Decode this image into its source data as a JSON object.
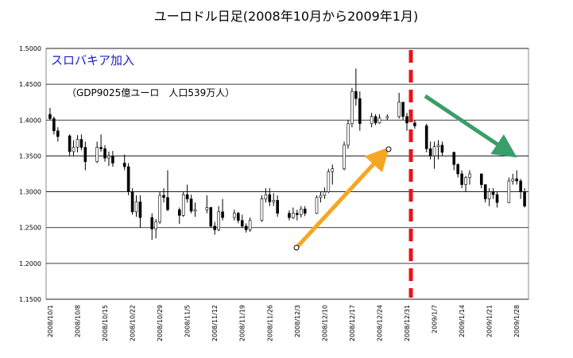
{
  "chart_data": {
    "type": "candlestick",
    "title": "ユーロドル日足(2008年10月から2009年1月)",
    "annotations": [
      "スロバキア加入",
      "（GDP9025億ユーロ　人口539万人）"
    ],
    "x": [
      "2008/10/1",
      "2008/10/2",
      "2008/10/3",
      "2008/10/6",
      "2008/10/7",
      "2008/10/8",
      "2008/10/9",
      "2008/10/10",
      "2008/10/13",
      "2008/10/14",
      "2008/10/15",
      "2008/10/16",
      "2008/10/17",
      "2008/10/20",
      "2008/10/21",
      "2008/10/22",
      "2008/10/23",
      "2008/10/24",
      "2008/10/27",
      "2008/10/28",
      "2008/10/29",
      "2008/10/30",
      "2008/10/31",
      "2008/11/3",
      "2008/11/4",
      "2008/11/5",
      "2008/11/6",
      "2008/11/7",
      "2008/11/10",
      "2008/11/11",
      "2008/11/12",
      "2008/11/13",
      "2008/11/14",
      "2008/11/17",
      "2008/11/18",
      "2008/11/19",
      "2008/11/20",
      "2008/11/21",
      "2008/11/24",
      "2008/11/25",
      "2008/11/26",
      "2008/11/27",
      "2008/11/28",
      "2008/12/1",
      "2008/12/2",
      "2008/12/3",
      "2008/12/4",
      "2008/12/5",
      "2008/12/8",
      "2008/12/9",
      "2008/12/10",
      "2008/12/11",
      "2008/12/12",
      "2008/12/15",
      "2008/12/16",
      "2008/12/17",
      "2008/12/18",
      "2008/12/19",
      "2008/12/22",
      "2008/12/23",
      "2008/12/24",
      "2008/12/26",
      "2008/12/29",
      "2008/12/30",
      "2008/12/31",
      "2009/1/2",
      "2009/1/5",
      "2009/1/6",
      "2009/1/7",
      "2009/1/8",
      "2009/1/9",
      "2009/1/12",
      "2009/1/13",
      "2009/1/14",
      "2009/1/15",
      "2009/1/16",
      "2009/1/19",
      "2009/1/20",
      "2009/1/21",
      "2009/1/22",
      "2009/1/23",
      "2009/1/26",
      "2009/1/27",
      "2009/1/28",
      "2009/1/29",
      "2009/1/30"
    ],
    "open": [
      1.408,
      1.402,
      1.385,
      1.378,
      1.356,
      1.362,
      1.373,
      1.362,
      1.342,
      1.362,
      1.36,
      1.347,
      1.35,
      1.34,
      1.335,
      1.3,
      1.272,
      1.286,
      1.264,
      1.248,
      1.258,
      1.295,
      1.292,
      1.275,
      1.267,
      1.296,
      1.29,
      1.273,
      1.275,
      1.278,
      1.252,
      1.247,
      1.272,
      1.264,
      1.27,
      1.26,
      1.252,
      1.247,
      1.26,
      1.29,
      1.296,
      1.286,
      1.288,
      1.27,
      1.264,
      1.27,
      1.268,
      1.276,
      1.27,
      1.292,
      1.295,
      1.3,
      1.328,
      1.332,
      1.365,
      1.395,
      1.44,
      1.43,
      1.395,
      1.405,
      1.396,
      1.403,
      1.405,
      1.425,
      1.405,
      1.396,
      1.392,
      1.36,
      1.35,
      1.363,
      1.365,
      1.355,
      1.338,
      1.325,
      1.31,
      1.32,
      1.325,
      1.31,
      1.29,
      1.3,
      1.296,
      1.285,
      1.315,
      1.318,
      1.315,
      1.3
    ],
    "high": [
      1.417,
      1.405,
      1.39,
      1.38,
      1.372,
      1.379,
      1.38,
      1.37,
      1.37,
      1.38,
      1.365,
      1.356,
      1.357,
      1.352,
      1.34,
      1.305,
      1.295,
      1.295,
      1.27,
      1.262,
      1.3,
      1.305,
      1.33,
      1.278,
      1.3,
      1.31,
      1.296,
      1.285,
      1.295,
      1.279,
      1.258,
      1.28,
      1.29,
      1.275,
      1.272,
      1.268,
      1.256,
      1.264,
      1.295,
      1.305,
      1.305,
      1.298,
      1.295,
      1.274,
      1.278,
      1.275,
      1.28,
      1.28,
      1.295,
      1.3,
      1.306,
      1.332,
      1.338,
      1.37,
      1.4,
      1.445,
      1.472,
      1.44,
      1.41,
      1.408,
      1.408,
      1.408,
      1.438,
      1.425,
      1.41,
      1.4,
      1.395,
      1.37,
      1.37,
      1.372,
      1.37,
      1.356,
      1.34,
      1.33,
      1.322,
      1.33,
      1.325,
      1.31,
      1.305,
      1.305,
      1.3,
      1.32,
      1.325,
      1.33,
      1.318,
      1.305
    ],
    "low": [
      1.4,
      1.38,
      1.37,
      1.35,
      1.35,
      1.355,
      1.358,
      1.33,
      1.34,
      1.356,
      1.342,
      1.336,
      1.335,
      1.33,
      1.295,
      1.268,
      1.265,
      1.25,
      1.233,
      1.235,
      1.255,
      1.285,
      1.273,
      1.255,
      1.265,
      1.285,
      1.27,
      1.265,
      1.27,
      1.25,
      1.24,
      1.245,
      1.26,
      1.26,
      1.256,
      1.25,
      1.243,
      1.244,
      1.258,
      1.285,
      1.28,
      1.28,
      1.265,
      1.26,
      1.262,
      1.26,
      1.264,
      1.266,
      1.269,
      1.285,
      1.29,
      1.298,
      1.31,
      1.33,
      1.36,
      1.39,
      1.42,
      1.385,
      1.39,
      1.393,
      1.395,
      1.4,
      1.402,
      1.4,
      1.385,
      1.388,
      1.355,
      1.345,
      1.332,
      1.345,
      1.35,
      1.33,
      1.32,
      1.305,
      1.3,
      1.31,
      1.305,
      1.285,
      1.28,
      1.29,
      1.278,
      1.284,
      1.31,
      1.31,
      1.29,
      1.278
    ],
    "close": [
      1.402,
      1.385,
      1.377,
      1.356,
      1.362,
      1.373,
      1.362,
      1.342,
      1.362,
      1.36,
      1.347,
      1.35,
      1.34,
      1.335,
      1.3,
      1.272,
      1.286,
      1.264,
      1.248,
      1.258,
      1.295,
      1.292,
      1.275,
      1.267,
      1.296,
      1.29,
      1.273,
      1.275,
      1.278,
      1.252,
      1.247,
      1.272,
      1.264,
      1.27,
      1.26,
      1.252,
      1.247,
      1.26,
      1.29,
      1.296,
      1.286,
      1.288,
      1.27,
      1.264,
      1.27,
      1.268,
      1.276,
      1.27,
      1.292,
      1.295,
      1.3,
      1.328,
      1.332,
      1.365,
      1.395,
      1.44,
      1.43,
      1.395,
      1.405,
      1.396,
      1.403,
      1.405,
      1.425,
      1.405,
      1.396,
      1.392,
      1.36,
      1.35,
      1.363,
      1.365,
      1.355,
      1.338,
      1.325,
      1.31,
      1.32,
      1.325,
      1.31,
      1.29,
      1.3,
      1.296,
      1.285,
      1.315,
      1.318,
      1.315,
      1.3,
      1.28
    ],
    "xlim": [
      "2008/9/30",
      "2009/1/31"
    ],
    "xticks": [
      "2008/10/1",
      "2008/10/8",
      "2008/10/15",
      "2008/10/22",
      "2008/10/29",
      "2008/11/5",
      "2008/11/12",
      "2008/11/19",
      "2008/11/26",
      "2008/12/3",
      "2008/12/10",
      "2008/12/17",
      "2008/12/24",
      "2008/12/31",
      "2009/1/7",
      "2009/1/14",
      "2009/1/21",
      "2009/1/28"
    ],
    "ylim": [
      1.15,
      1.5
    ],
    "yticks": [
      {
        "value": 1.15,
        "label": "1.1500"
      },
      {
        "value": 1.2,
        "label": "1.2000"
      },
      {
        "value": 1.25,
        "label": "1.2500"
      },
      {
        "value": 1.3,
        "label": "1.3000"
      },
      {
        "value": 1.35,
        "label": "1.3500"
      },
      {
        "value": 1.4,
        "label": "1.4000"
      },
      {
        "value": 1.45,
        "label": "1.4500"
      },
      {
        "value": 1.5,
        "label": "1.5000"
      }
    ],
    "grid": true,
    "color": "#000000"
  }
}
